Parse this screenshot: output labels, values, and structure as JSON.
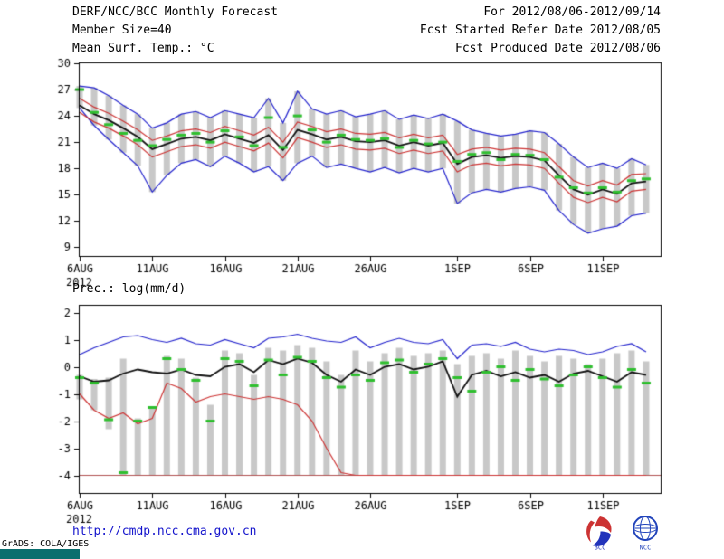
{
  "header": {
    "title": "DERF/NCC/BCC Monthly Forecast",
    "period": "For 2012/08/06-2012/09/14",
    "member_size": "Member Size=40",
    "refer_date": "Fcst Started Refer Date 2012/08/05",
    "produced_date": "Fcst Produced Date 2012/08/06"
  },
  "footer": {
    "url": "http://cmdp.ncc.cma.gov.cn",
    "grads_credit": "GrADS: COLA/IGES",
    "logos": [
      {
        "label": "BCC"
      },
      {
        "label": "NCC"
      }
    ]
  },
  "colors": {
    "link_blue": "#1414cc",
    "teal_bar": "#0a6e6e",
    "envelope_blue": "#2222cc",
    "quartile_red": "#cc3333",
    "mean_black": "#111111",
    "median_green": "#2fbf2f",
    "spread_gray": "#c8c8c8"
  },
  "chart_data": [
    {
      "type": "line",
      "title": "Mean Surf. Temp.: °C",
      "ylabel": "°C",
      "ylim": [
        8.0,
        30.0
      ],
      "yticks": [
        9,
        12,
        15,
        18,
        21,
        24,
        27,
        30
      ],
      "n_points": 40,
      "x_span": 40,
      "x_tick_labels": [
        "6AUG",
        "11AUG",
        "16AUG",
        "21AUG",
        "26AUG",
        "1SEP",
        "6SEP",
        "11SEP"
      ],
      "x_tick_positions": [
        0,
        5,
        10,
        15,
        20,
        26,
        31,
        36
      ],
      "x_year_label": "2012",
      "grid": false,
      "legend": "none",
      "bars": {
        "color": "#c8c8c8",
        "low": "min",
        "high": "max"
      },
      "series": [
        {
          "name": "min",
          "color": "#2222cc",
          "width": 1.2,
          "style": "line",
          "values": [
            24.9,
            22.9,
            21.3,
            19.8,
            18.3,
            15.3,
            17.2,
            18.6,
            19.0,
            18.2,
            19.4,
            18.6,
            17.6,
            18.2,
            16.6,
            18.6,
            19.4,
            18.1,
            18.5,
            18.0,
            17.6,
            18.1,
            17.5,
            18.0,
            17.6,
            18.0,
            14.0,
            15.2,
            15.6,
            15.3,
            15.7,
            15.9,
            15.5,
            13.2,
            11.6,
            10.6,
            11.1,
            11.4,
            12.6,
            12.9
          ]
        },
        {
          "name": "max",
          "color": "#2222cc",
          "width": 1.2,
          "style": "line",
          "values": [
            27.4,
            27.2,
            26.3,
            25.2,
            24.2,
            22.6,
            23.2,
            24.2,
            24.5,
            23.8,
            24.6,
            24.2,
            23.8,
            26.0,
            23.2,
            26.8,
            24.8,
            24.2,
            24.6,
            23.9,
            24.2,
            24.6,
            23.6,
            24.1,
            23.7,
            24.2,
            23.4,
            22.4,
            22.0,
            21.7,
            21.9,
            22.3,
            22.1,
            20.8,
            19.3,
            18.1,
            18.6,
            18.0,
            19.1,
            18.4
          ]
        },
        {
          "name": "lower_quartile",
          "color": "#cc3333",
          "width": 1.2,
          "style": "line",
          "values": [
            24.4,
            23.3,
            22.6,
            21.7,
            20.7,
            19.3,
            19.9,
            20.5,
            20.7,
            20.3,
            21.0,
            20.5,
            20.0,
            20.9,
            19.2,
            21.5,
            21.0,
            20.4,
            20.7,
            20.2,
            20.1,
            20.3,
            19.7,
            20.1,
            19.7,
            20.0,
            17.6,
            18.4,
            18.6,
            18.3,
            18.5,
            18.4,
            18.0,
            16.3,
            14.7,
            14.1,
            14.7,
            14.2,
            15.4,
            15.6
          ]
        },
        {
          "name": "upper_quartile",
          "color": "#cc3333",
          "width": 1.2,
          "style": "line",
          "values": [
            26.0,
            25.0,
            24.3,
            23.4,
            22.4,
            21.2,
            21.7,
            22.3,
            22.5,
            22.1,
            22.8,
            22.3,
            21.8,
            22.7,
            21.0,
            23.3,
            22.8,
            22.2,
            22.5,
            22.0,
            21.9,
            22.1,
            21.5,
            21.9,
            21.5,
            21.8,
            19.6,
            20.2,
            20.4,
            20.1,
            20.3,
            20.2,
            19.8,
            18.2,
            16.6,
            16.0,
            16.6,
            16.1,
            17.3,
            17.4
          ]
        },
        {
          "name": "ensemble_mean",
          "color": "#111111",
          "width": 1.8,
          "style": "line",
          "values": [
            25.2,
            24.2,
            23.5,
            22.6,
            21.6,
            20.2,
            20.8,
            21.4,
            21.6,
            21.2,
            21.9,
            21.4,
            20.9,
            21.8,
            20.1,
            22.4,
            21.9,
            21.3,
            21.6,
            21.1,
            21.0,
            21.2,
            20.6,
            21.0,
            20.6,
            20.9,
            18.5,
            19.3,
            19.5,
            19.2,
            19.4,
            19.3,
            18.9,
            17.2,
            15.6,
            15.0,
            15.6,
            15.1,
            16.3,
            16.5
          ]
        },
        {
          "name": "median",
          "color": "#2fbf2f",
          "width": 3,
          "style": "dash",
          "values": [
            27.0,
            24.4,
            23.0,
            22.0,
            21.2,
            20.6,
            21.3,
            21.8,
            22.0,
            21.0,
            22.3,
            21.6,
            20.6,
            23.8,
            20.4,
            24.0,
            22.4,
            21.0,
            21.8,
            21.3,
            21.2,
            21.4,
            20.4,
            21.2,
            20.8,
            21.0,
            18.8,
            19.6,
            19.8,
            19.0,
            19.6,
            19.5,
            19.0,
            17.0,
            15.8,
            15.2,
            15.8,
            15.3,
            16.6,
            16.8
          ]
        }
      ]
    },
    {
      "type": "line",
      "title": "Prec.: log(mm/d)",
      "ylabel": "log(mm/d)",
      "ylim": [
        -4.65,
        2.25
      ],
      "yticks": [
        -4,
        -3,
        -2,
        -1,
        0,
        1,
        2
      ],
      "n_points": 40,
      "x_span": 40,
      "x_tick_labels": [
        "6AUG",
        "11AUG",
        "16AUG",
        "21AUG",
        "26AUG",
        "1SEP",
        "6SEP",
        "11SEP"
      ],
      "x_tick_positions": [
        0,
        5,
        10,
        15,
        20,
        26,
        31,
        36
      ],
      "x_year_label": "2012",
      "grid": false,
      "legend": "none",
      "baseline": {
        "value": -4,
        "color": "#b05050"
      },
      "bars": {
        "color": "#c8c8c8",
        "low": [
          -1.2,
          -1.6,
          -2.3,
          -4.0,
          -4.0,
          -4.0,
          -4.0,
          -4.0,
          -4.0,
          -4.0,
          -4.0,
          -4.0,
          -4.0,
          -4.0,
          -4.0,
          -4.0,
          -4.0,
          -4.0,
          -4.0,
          -4.0,
          -4.0,
          -4.0,
          -4.0,
          -4.0,
          -4.0,
          -4.0,
          -4.0,
          -4.0,
          -4.0,
          -4.0,
          -4.0,
          -4.0,
          -4.0,
          -4.0,
          -4.0,
          -4.0,
          -4.0,
          -4.0,
          -4.0,
          -4.0
        ],
        "high": [
          -0.3,
          -0.45,
          -0.4,
          0.3,
          -1.9,
          -1.5,
          0.4,
          0.3,
          -0.4,
          -1.4,
          0.6,
          0.5,
          -0.3,
          0.7,
          0.6,
          0.8,
          0.7,
          0.2,
          -0.3,
          0.6,
          0.2,
          0.5,
          0.7,
          0.4,
          0.5,
          0.6,
          0.1,
          0.4,
          0.5,
          0.3,
          0.6,
          0.4,
          0.2,
          0.4,
          0.3,
          0.1,
          0.3,
          0.5,
          0.6,
          0.2
        ]
      },
      "series": [
        {
          "name": "min",
          "color": "#cc3333",
          "width": 1.2,
          "style": "line",
          "values": [
            -1.0,
            -1.6,
            -1.9,
            -1.7,
            -2.1,
            -1.9,
            -0.6,
            -0.8,
            -1.3,
            -1.1,
            -1.0,
            -1.1,
            -1.2,
            -1.1,
            -1.2,
            -1.4,
            -2.0,
            -3.0,
            -3.9,
            -4.0,
            -4.0,
            -4.0,
            -4.0,
            -4.0,
            -4.0,
            -4.0,
            -4.0,
            -4.0,
            -4.0,
            -4.0,
            -4.0,
            -4.0,
            -4.0,
            -4.0,
            -4.0,
            -4.0,
            -4.0,
            -4.0,
            -4.0,
            -4.0
          ]
        },
        {
          "name": "max",
          "color": "#2222cc",
          "width": 1.2,
          "style": "line",
          "values": [
            0.45,
            0.7,
            0.9,
            1.1,
            1.15,
            1.0,
            0.9,
            1.05,
            0.85,
            0.8,
            1.0,
            0.85,
            0.7,
            1.05,
            1.1,
            1.2,
            1.05,
            0.95,
            0.9,
            1.1,
            0.7,
            0.9,
            1.05,
            0.9,
            0.85,
            1.0,
            0.3,
            0.8,
            0.85,
            0.75,
            0.9,
            0.65,
            0.55,
            0.65,
            0.6,
            0.45,
            0.55,
            0.75,
            0.85,
            0.55
          ]
        },
        {
          "name": "ensemble_mean",
          "color": "#111111",
          "width": 1.8,
          "style": "line",
          "values": [
            -0.35,
            -0.55,
            -0.5,
            -0.25,
            -0.1,
            -0.2,
            -0.25,
            -0.1,
            -0.3,
            -0.35,
            0.0,
            0.1,
            -0.2,
            0.25,
            0.1,
            0.3,
            0.15,
            -0.3,
            -0.55,
            -0.1,
            -0.3,
            0.0,
            0.1,
            -0.1,
            0.0,
            0.2,
            -1.1,
            -0.3,
            -0.15,
            -0.35,
            -0.2,
            -0.4,
            -0.3,
            -0.55,
            -0.25,
            -0.15,
            -0.35,
            -0.55,
            -0.2,
            -0.3
          ]
        },
        {
          "name": "median",
          "color": "#2fbf2f",
          "width": 3,
          "style": "dash",
          "values": [
            -0.4,
            -0.6,
            -1.95,
            -3.9,
            -2.0,
            -1.5,
            0.3,
            -0.1,
            -0.5,
            -2.0,
            0.3,
            0.2,
            -0.7,
            0.25,
            -0.3,
            0.35,
            0.2,
            -0.4,
            -0.75,
            -0.3,
            -0.5,
            0.15,
            0.25,
            -0.2,
            0.1,
            0.3,
            -0.4,
            -0.9,
            -0.2,
            0.0,
            -0.5,
            -0.1,
            -0.45,
            -0.7,
            -0.3,
            0.0,
            -0.4,
            -0.75,
            -0.1,
            -0.6
          ]
        }
      ]
    }
  ]
}
